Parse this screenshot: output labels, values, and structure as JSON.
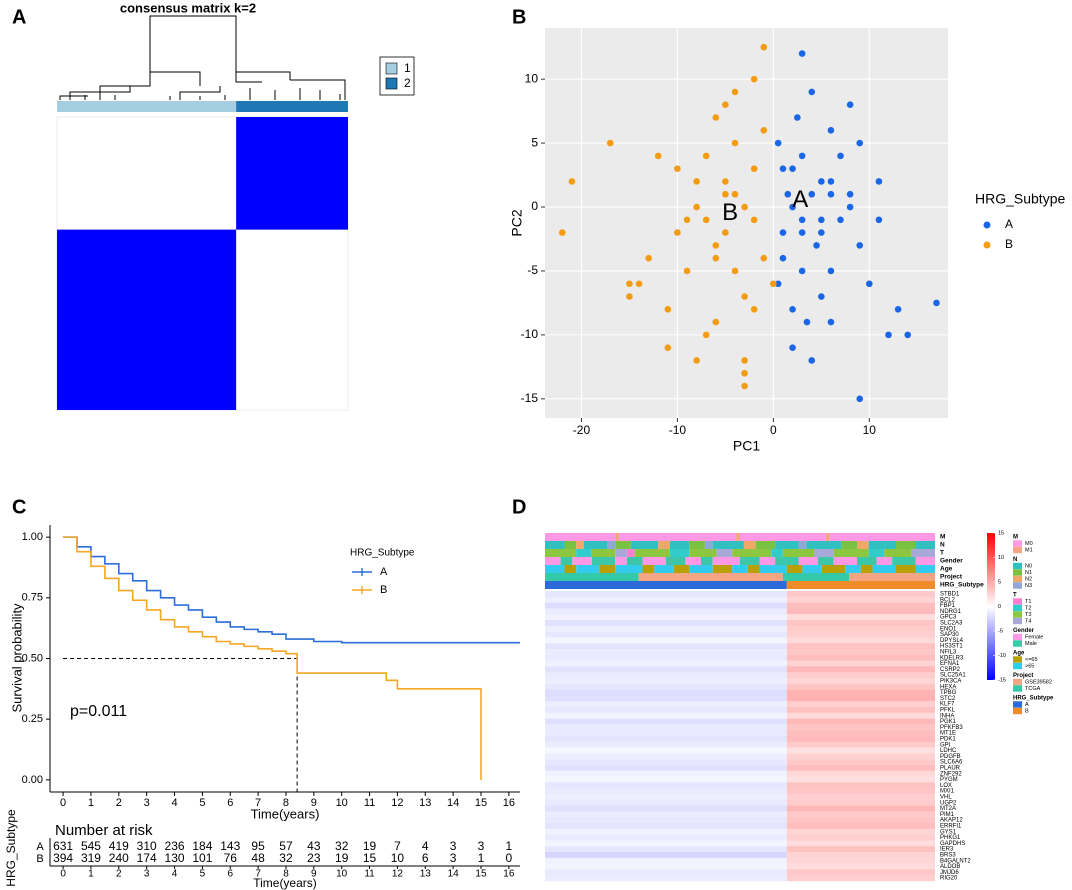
{
  "chart_data": [
    {
      "panel": "A",
      "type": "consensus_heatmap",
      "title": "consensus matrix k=2",
      "clusters": [
        "1",
        "2"
      ],
      "colors": [
        "#a6cee3",
        "#1f78b4"
      ],
      "sizes": [
        631,
        394
      ],
      "fill_color": "#0000ff"
    },
    {
      "panel": "B",
      "type": "scatter",
      "xlabel": "PC1",
      "ylabel": "PC2",
      "legend_title": "HRG_Subtype",
      "xlim": [
        -23.8,
        18.2
      ],
      "ylim": [
        -16.5,
        14
      ],
      "xticks": [
        -20,
        -10,
        0,
        10
      ],
      "yticks": [
        -15,
        -10,
        -5,
        0,
        5,
        10
      ],
      "grid": true,
      "series": [
        {
          "name": "A",
          "color": "#1a66e6",
          "x": [
            2,
            4,
            6,
            1,
            3,
            5,
            8,
            0.5,
            2.5,
            7,
            9,
            11,
            3,
            5,
            1,
            4,
            6,
            2,
            10,
            12,
            3,
            6,
            8,
            1.5,
            4.5,
            7,
            2,
            5,
            9,
            3,
            6,
            17,
            14,
            13,
            9,
            4,
            2,
            5,
            1,
            8,
            3,
            6,
            11,
            0.5,
            3.5
          ],
          "values": [
            0,
            1,
            2,
            3,
            -1,
            -2,
            0,
            5,
            7,
            4,
            -3,
            2,
            -5,
            -7,
            -4,
            9,
            -9,
            -11,
            -6,
            -10,
            12,
            6,
            8,
            1,
            -3,
            -1,
            3,
            2,
            5,
            -2,
            -5,
            -7.5,
            -10,
            -8,
            -15,
            -12,
            -8,
            -1,
            -2,
            1,
            4,
            1,
            -1,
            -6,
            -9
          ]
        },
        {
          "name": "B",
          "color": "#f39c12",
          "x": [
            -3,
            -5,
            -7,
            -2,
            -4,
            -6,
            -8,
            -10,
            -12,
            -14,
            -17,
            -21,
            -22,
            -1,
            -3,
            -5,
            -9,
            -11,
            -15,
            -2,
            -4,
            -6,
            -8,
            -1,
            -3,
            -7,
            -13,
            -10,
            -6,
            -4,
            -2,
            -5,
            -8,
            -11,
            -3,
            0,
            -1,
            -7,
            -9,
            -5,
            -2,
            -4,
            -6,
            -15,
            -3
          ],
          "values": [
            0,
            1,
            -1,
            3,
            5,
            -3,
            2,
            -2,
            4,
            -6,
            5,
            2,
            -2,
            -4,
            -7,
            8,
            -5,
            -11,
            -6,
            10,
            9,
            -9,
            -12,
            12.5,
            -14,
            -10,
            -4,
            3,
            7,
            -5,
            -1,
            2,
            0,
            -8,
            -13,
            -6,
            6,
            4,
            -1,
            -2,
            -8,
            1,
            -4,
            -7,
            -12
          ]
        }
      ],
      "annotations": [
        {
          "text": "A",
          "x": 2.8,
          "y": 0.5
        },
        {
          "text": "B",
          "x": -4.5,
          "y": -0.5
        }
      ]
    },
    {
      "panel": "C",
      "type": "survival",
      "xlabel": "Time(years)",
      "ylabel": "Survival probability",
      "legend_title": "HRG_Subtype",
      "xlim": [
        -0.47,
        16.4
      ],
      "ylim": [
        -0.05,
        1.05
      ],
      "xticks": [
        0,
        1,
        2,
        3,
        4,
        5,
        6,
        7,
        8,
        9,
        10,
        11,
        12,
        13,
        14,
        15,
        16
      ],
      "yticks": [
        {
          "value": 0,
          "label": "0.00"
        },
        {
          "value": 0.25,
          "label": "0.25"
        },
        {
          "value": 0.5,
          "label": "0.50"
        },
        {
          "value": 0.75,
          "label": "0.75"
        },
        {
          "value": 1,
          "label": "1.00"
        }
      ],
      "series": [
        {
          "name": "A",
          "color": "#2a6fdb",
          "x": [
            0,
            0.5,
            1,
            1.5,
            2,
            2.5,
            3,
            3.5,
            4,
            4.5,
            5,
            5.5,
            6,
            6.5,
            7,
            7.5,
            8,
            9,
            10,
            16.4
          ],
          "values": [
            1,
            0.96,
            0.92,
            0.89,
            0.85,
            0.82,
            0.78,
            0.75,
            0.72,
            0.7,
            0.67,
            0.65,
            0.63,
            0.62,
            0.61,
            0.6,
            0.58,
            0.57,
            0.565,
            0.565
          ]
        },
        {
          "name": "B",
          "color": "#f5a623",
          "x": [
            0,
            0.5,
            1,
            1.5,
            2,
            2.5,
            3,
            3.5,
            4,
            4.5,
            5,
            5.5,
            6,
            6.5,
            7,
            7.5,
            8,
            8.4,
            11.6,
            12,
            15,
            15
          ],
          "values": [
            1,
            0.94,
            0.88,
            0.83,
            0.78,
            0.74,
            0.7,
            0.66,
            0.63,
            0.61,
            0.59,
            0.57,
            0.56,
            0.55,
            0.54,
            0.53,
            0.52,
            0.44,
            0.41,
            0.375,
            0.375,
            0
          ]
        }
      ],
      "pvalue": "p=0.011",
      "median": {
        "x": 8.4,
        "y": 0.5
      },
      "risk_table": {
        "title": "Number at risk",
        "ylabel": "HRG_Subtype",
        "xlabel": "Time(years)",
        "rows": [
          [
            631,
            545,
            419,
            310,
            236,
            184,
            143,
            95,
            57,
            43,
            32,
            19,
            7,
            4,
            3,
            3,
            1
          ],
          [
            394,
            319,
            240,
            174,
            130,
            101,
            76,
            48,
            32,
            23,
            19,
            15,
            10,
            6,
            3,
            1,
            0
          ]
        ]
      }
    },
    {
      "panel": "D",
      "type": "expression_heatmap",
      "annotations": [
        {
          "name": "M",
          "levels": [
            "M0",
            "M1"
          ],
          "colors": [
            "#ff99e6",
            "#f4a582"
          ],
          "segments": [
            [
              0,
              18
            ],
            [
              1,
              1
            ],
            [
              0,
              30
            ],
            [
              1,
              1
            ],
            [
              0,
              22
            ],
            [
              1,
              1
            ],
            [
              0,
              27
            ]
          ]
        },
        {
          "name": "N",
          "levels": [
            "N0",
            "N1",
            "N2",
            "N3"
          ],
          "colors": [
            "#30c0c0",
            "#7cc242",
            "#f0a868",
            "#8fa8d8"
          ],
          "segments": [
            [
              0,
              5
            ],
            [
              1,
              3
            ],
            [
              2,
              2
            ],
            [
              0,
              6
            ],
            [
              3,
              2
            ],
            [
              1,
              4
            ],
            [
              0,
              7
            ],
            [
              2,
              3
            ],
            [
              0,
              5
            ],
            [
              1,
              4
            ],
            [
              3,
              2
            ],
            [
              0,
              8
            ],
            [
              2,
              3
            ],
            [
              1,
              5
            ],
            [
              0,
              6
            ],
            [
              3,
              2
            ],
            [
              0,
              9
            ],
            [
              1,
              4
            ],
            [
              2,
              3
            ],
            [
              0,
              7
            ],
            [
              1,
              5
            ],
            [
              0,
              5
            ]
          ]
        },
        {
          "name": "T",
          "levels": [
            "T1",
            "T2",
            "T3",
            "T4"
          ],
          "colors": [
            "#ff7fd0",
            "#33cccc",
            "#8dc63f",
            "#a9a9d9"
          ],
          "segments": [
            [
              2,
              8
            ],
            [
              1,
              4
            ],
            [
              2,
              6
            ],
            [
              3,
              3
            ],
            [
              0,
              2
            ],
            [
              2,
              9
            ],
            [
              1,
              5
            ],
            [
              2,
              7
            ],
            [
              3,
              4
            ],
            [
              2,
              10
            ],
            [
              1,
              3
            ],
            [
              2,
              8
            ],
            [
              3,
              5
            ],
            [
              2,
              9
            ],
            [
              1,
              4
            ],
            [
              2,
              7
            ],
            [
              3,
              6
            ]
          ]
        },
        {
          "name": "Gender",
          "levels": [
            "Female",
            "Male"
          ],
          "colors": [
            "#ff99e6",
            "#3cc8a8"
          ],
          "segments": [
            [
              0,
              4
            ],
            [
              1,
              3
            ],
            [
              0,
              5
            ],
            [
              1,
              6
            ],
            [
              0,
              3
            ],
            [
              1,
              4
            ],
            [
              0,
              6
            ],
            [
              1,
              5
            ],
            [
              0,
              4
            ],
            [
              1,
              3
            ],
            [
              0,
              7
            ],
            [
              1,
              5
            ],
            [
              0,
              4
            ],
            [
              1,
              6
            ],
            [
              0,
              5
            ],
            [
              1,
              4
            ],
            [
              0,
              6
            ],
            [
              1,
              5
            ],
            [
              0,
              4
            ],
            [
              1,
              6
            ],
            [
              0,
              5
            ]
          ]
        },
        {
          "name": "Age",
          "levels": [
            "<=65",
            ">65"
          ],
          "colors": [
            "#b8a000",
            "#33ccee"
          ],
          "segments": [
            [
              1,
              5
            ],
            [
              0,
              3
            ],
            [
              1,
              6
            ],
            [
              0,
              4
            ],
            [
              1,
              7
            ],
            [
              0,
              3
            ],
            [
              1,
              5
            ],
            [
              0,
              4
            ],
            [
              1,
              6
            ],
            [
              0,
              5
            ],
            [
              1,
              4
            ],
            [
              0,
              3
            ],
            [
              1,
              7
            ],
            [
              0,
              4
            ],
            [
              1,
              5
            ],
            [
              0,
              6
            ],
            [
              1,
              4
            ],
            [
              0,
              3
            ],
            [
              1,
              6
            ],
            [
              0,
              5
            ],
            [
              1,
              5
            ]
          ]
        },
        {
          "name": "Project",
          "levels": [
            "GSE39582",
            "TCGA"
          ],
          "colors": [
            "#f4a582",
            "#33c9a9"
          ],
          "segments": [
            [
              1,
              24
            ],
            [
              0,
              37
            ],
            [
              1,
              17
            ],
            [
              0,
              22
            ]
          ]
        },
        {
          "name": "HRG_Subtype",
          "levels": [
            "A",
            "B"
          ],
          "colors": [
            "#2b6ad8",
            "#f28c28"
          ],
          "segments": [
            [
              0,
              62
            ],
            [
              1,
              38
            ]
          ]
        }
      ],
      "genes": [
        "STBD1",
        "BCL2",
        "FBP1",
        "NDRG1",
        "GPC3",
        "SLC2A3",
        "ENO1",
        "SAP30",
        "DPYSL4",
        "HS3ST1",
        "NFIL3",
        "KDELR3",
        "EFNA1",
        "CSRP2",
        "SLC25A1",
        "PIK3CA",
        "HEXA",
        "TPBG",
        "STC2",
        "KLF7",
        "PFKL",
        "INHA",
        "PGK1",
        "PFKFB3",
        "MT1E",
        "PDK1",
        "GPI",
        "LDHC",
        "PDGFB",
        "SLC6A6",
        "PLAUR",
        "ZNF292",
        "PYGM",
        "LOX",
        "MXI1",
        "VHL",
        "UGP2",
        "MT2A",
        "PIM1",
        "AKAP12",
        "ERRFI1",
        "GYS1",
        "PHKG1",
        "GAPDHS",
        "IER3",
        "BRS3",
        "B4GALNT2",
        "ALDOB",
        "JMJD6",
        "RIG20"
      ],
      "values": [
        [
          -1.5,
          3.2
        ],
        [
          -1,
          2.5
        ],
        [
          -2,
          3.8
        ],
        [
          -1.2,
          4
        ],
        [
          -0.8,
          2
        ],
        [
          -1.8,
          3.5
        ],
        [
          -1,
          3
        ],
        [
          -1.4,
          2.8
        ],
        [
          -0.6,
          2.2
        ],
        [
          -1.6,
          3.6
        ],
        [
          -1.1,
          3.3
        ],
        [
          -1.3,
          3.9
        ],
        [
          -0.9,
          2.6
        ],
        [
          -1.7,
          4.2
        ],
        [
          -1.2,
          3
        ],
        [
          -1,
          2.4
        ],
        [
          -1.5,
          3.4
        ],
        [
          -2,
          4.4
        ],
        [
          -1.8,
          4.6
        ],
        [
          -1,
          2.9
        ],
        [
          -1.4,
          3.7
        ],
        [
          -0.7,
          2.1
        ],
        [
          -1.9,
          4.1
        ],
        [
          -1.2,
          3.5
        ],
        [
          -1.3,
          3.8
        ],
        [
          -1.6,
          4
        ],
        [
          -1.1,
          3.1
        ],
        [
          -0.5,
          1.8
        ],
        [
          -1,
          2.7
        ],
        [
          -1.4,
          3.2
        ],
        [
          -1.7,
          3.9
        ],
        [
          -0.8,
          2.3
        ],
        [
          -0.6,
          1.9
        ],
        [
          -1.5,
          3.6
        ],
        [
          -1.2,
          3.4
        ],
        [
          -1,
          2.8
        ],
        [
          -1.3,
          3
        ],
        [
          -1.8,
          4.3
        ],
        [
          -1.1,
          3.2
        ],
        [
          -1.4,
          3.5
        ],
        [
          -1.6,
          3.8
        ],
        [
          -0.9,
          2.5
        ],
        [
          -1.2,
          2.9
        ],
        [
          -0.7,
          2
        ],
        [
          -1.5,
          3.7
        ],
        [
          -2.5,
          2.6
        ],
        [
          -0.8,
          2.4
        ],
        [
          -0.6,
          2.1
        ],
        [
          -1.3,
          3.3
        ],
        [
          -1.1,
          2.9
        ]
      ],
      "scale": {
        "lim": [
          -15,
          15
        ],
        "ticks": [
          15,
          10,
          5,
          0,
          -5,
          -10,
          -15
        ],
        "colors": [
          "#0000ff",
          "#ffffff",
          "#ff0000"
        ]
      }
    }
  ]
}
